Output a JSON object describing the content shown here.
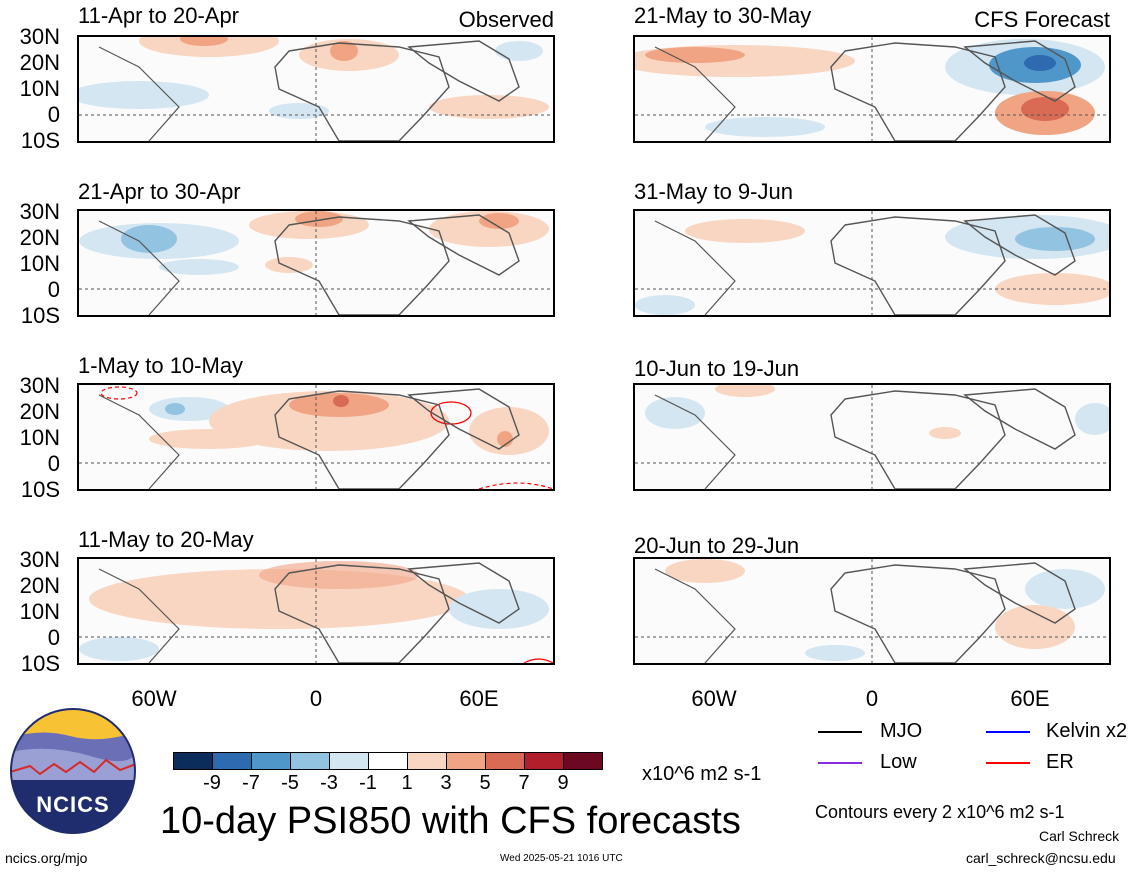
{
  "panels_left": [
    {
      "title": "11-Apr to 20-Apr",
      "tag": "Observed"
    },
    {
      "title": "21-Apr to 30-Apr",
      "tag": ""
    },
    {
      "title": "1-May to 10-May",
      "tag": ""
    },
    {
      "title": "11-May to 20-May",
      "tag": ""
    }
  ],
  "panels_right": [
    {
      "title": "21-May to 30-May",
      "tag": "CFS Forecast"
    },
    {
      "title": "31-May to 9-Jun",
      "tag": ""
    },
    {
      "title": "10-Jun to 19-Jun",
      "tag": ""
    },
    {
      "title": "20-Jun to 29-Jun",
      "tag": ""
    }
  ],
  "lat_labels": [
    "30N",
    "20N",
    "10N",
    "0",
    "10S"
  ],
  "lon_labels": [
    "60W",
    "0",
    "60E"
  ],
  "colorbar": {
    "ticks": [
      "-9",
      "-7",
      "-5",
      "-3",
      "-1",
      "1",
      "3",
      "5",
      "7",
      "9"
    ],
    "colors": [
      "#0b2d5b",
      "#2e6aaf",
      "#4f97c9",
      "#92c3e0",
      "#d3e6f2",
      "#ffffff",
      "#f8d6c2",
      "#f0a483",
      "#d96a53",
      "#b11f2c",
      "#6d0821"
    ],
    "units": "x10^6 m2 s-1"
  },
  "legend": [
    {
      "label": "MJO",
      "color": "#000000"
    },
    {
      "label": "Kelvin x2",
      "color": "#0000ff"
    },
    {
      "label": "Low",
      "color": "#8a2be2"
    },
    {
      "label": "ER",
      "color": "#ff0000"
    }
  ],
  "main_title": "10-day PSI850 with CFS forecasts",
  "contour_note": "Contours every 2 x10^6 m2 s-1",
  "author": "Carl Schreck",
  "email": "carl_schreck@ncsu.edu",
  "website": "ncics.org/mjo",
  "timestamp": "Wed 2025-05-21 1016 UTC",
  "logo_text": "NCICS"
}
